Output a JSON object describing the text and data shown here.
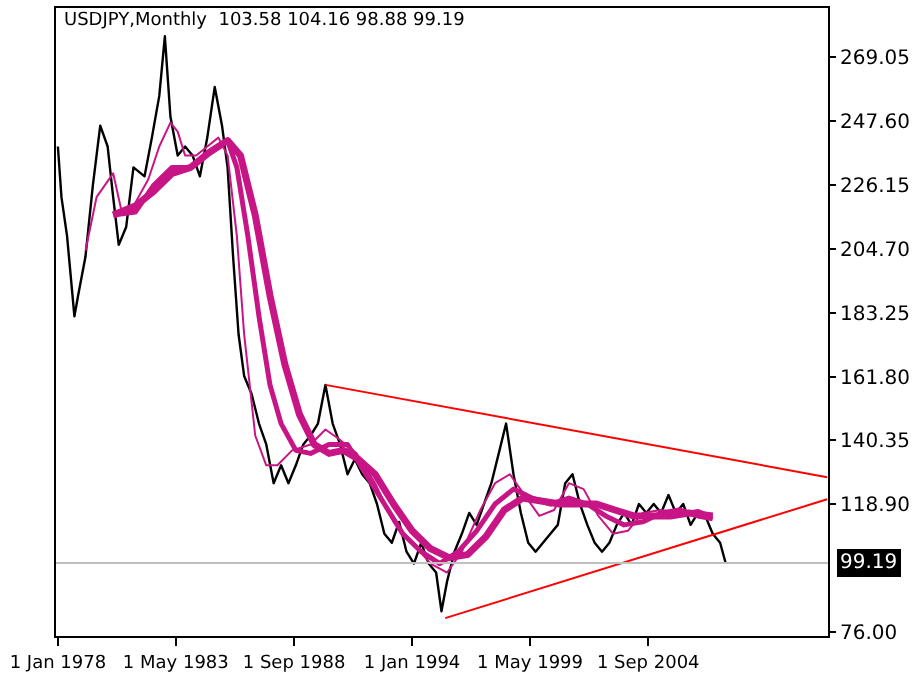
{
  "chart_data": {
    "type": "line",
    "title": "USDJPY,Monthly  103.58 104.16 98.88 99.19",
    "xlim": [
      "1977-12-01",
      "2012-10-15"
    ],
    "xticks": [
      {
        "value": "1978-01-01",
        "label": "1 Jan 1978"
      },
      {
        "value": "1983-05-01",
        "label": "1 May 1983"
      },
      {
        "value": "1988-09-01",
        "label": "1 Sep 1988"
      },
      {
        "value": "1994-01-01",
        "label": "1 Jan 1994"
      },
      {
        "value": "1999-05-01",
        "label": "1 May 1999"
      },
      {
        "value": "2004-09-01",
        "label": "1 Sep 2004"
      }
    ],
    "ylim": [
      74.7,
      285.5
    ],
    "yticks": [
      {
        "value": 76,
        "label": "76.00"
      },
      {
        "value": 118.9,
        "label": "118.90"
      },
      {
        "value": 140.35,
        "label": "140.35"
      },
      {
        "value": 161.8,
        "label": "161.80"
      },
      {
        "value": 183.25,
        "label": "183.25"
      },
      {
        "value": 204.7,
        "label": "204.70"
      },
      {
        "value": 226.15,
        "label": "226.15"
      },
      {
        "value": 247.6,
        "label": "247.60"
      },
      {
        "value": 269.05,
        "label": "269.05"
      }
    ],
    "grid": false,
    "marker": "none",
    "line_style": "solid",
    "ref_lines": [
      {
        "axis": "y",
        "value": 99.19,
        "label": "99.19",
        "color": "#c0c0c0"
      }
    ],
    "series": [
      {
        "color": "#000000",
        "x": [
          "1978-01",
          "1978-03",
          "1978-06",
          "1978-10",
          "1978-12",
          "1979-04",
          "1979-08",
          "1979-12",
          "1980-04",
          "1980-07",
          "1980-10",
          "1981-02",
          "1981-06",
          "1981-12",
          "1982-04",
          "1982-08",
          "1982-11",
          "1983-02",
          "1983-06",
          "1983-10",
          "1984-02",
          "1984-06",
          "1984-10",
          "1985-02",
          "1985-06",
          "1985-09",
          "1985-12",
          "1986-03",
          "1986-06",
          "1986-10",
          "1987-02",
          "1987-06",
          "1987-10",
          "1988-02",
          "1988-06",
          "1988-10",
          "1989-02",
          "1989-06",
          "1989-10",
          "1990-02",
          "1990-06",
          "1990-10",
          "1991-02",
          "1991-06",
          "1991-10",
          "1992-02",
          "1992-06",
          "1992-10",
          "1993-02",
          "1993-06",
          "1993-10",
          "1994-02",
          "1994-06",
          "1994-10",
          "1995-02",
          "1995-05",
          "1995-08",
          "1995-12",
          "1996-04",
          "1996-08",
          "1996-12",
          "1997-04",
          "1997-08",
          "1997-12",
          "1998-04",
          "1998-08",
          "1998-12",
          "1999-04",
          "1999-08",
          "1999-12",
          "2000-04",
          "2000-08",
          "2000-12",
          "2001-04",
          "2001-08",
          "2001-12",
          "2002-04",
          "2002-08",
          "2002-12",
          "2003-04",
          "2003-08",
          "2003-12",
          "2004-04",
          "2004-08",
          "2004-12",
          "2005-04",
          "2005-08",
          "2005-12",
          "2006-04",
          "2006-08",
          "2006-12",
          "2007-04",
          "2007-08",
          "2007-12",
          "2008-03"
        ],
        "values": [
          239,
          222,
          209,
          182,
          189,
          202,
          226,
          246,
          239,
          222,
          206,
          212,
          232,
          229,
          242,
          256,
          276,
          249,
          236,
          239,
          236,
          229,
          242,
          259,
          246,
          232,
          202,
          176,
          162,
          156,
          146,
          139,
          126,
          132,
          126,
          132,
          139,
          142,
          146,
          159,
          146,
          139,
          129,
          134,
          129,
          126,
          119,
          109,
          106,
          113,
          103,
          99,
          106,
          99,
          96,
          83,
          93,
          103,
          109,
          116,
          112,
          119,
          126,
          136,
          146,
          129,
          116,
          106,
          103,
          106,
          109,
          112,
          126,
          129,
          119,
          112,
          106,
          103,
          106,
          112,
          116,
          112,
          119,
          116,
          119,
          116,
          122,
          116,
          119,
          112,
          116,
          115,
          109,
          106,
          99.2
        ]
      },
      {
        "color": "#c71585",
        "x": [
          "1979-04",
          "1979-10",
          "1980-07",
          "1980-12",
          "1981-06",
          "1982-02",
          "1982-08",
          "1983-02",
          "1983-06",
          "1983-10",
          "1984-04",
          "1984-10",
          "1985-04",
          "1985-09",
          "1986-02",
          "1986-06",
          "1986-12",
          "1987-06",
          "1987-12",
          "1988-08",
          "1989-06",
          "1990-02",
          "1990-09",
          "1991-07",
          "1992-05",
          "1993-03",
          "1994-01",
          "1994-11",
          "1995-08",
          "1996-04",
          "1997-02",
          "1997-10",
          "1998-06",
          "1999-02",
          "1999-10",
          "2000-06",
          "2001-02",
          "2001-10",
          "2002-06",
          "2003-02",
          "2003-10",
          "2004-06",
          "2005-04",
          "2006-02",
          "2006-12",
          "2007-08"
        ],
        "values": [
          204,
          222,
          230,
          216,
          219,
          228,
          239,
          247,
          244,
          236,
          236,
          239,
          242,
          236,
          209,
          176,
          142,
          132,
          132,
          137,
          139,
          144,
          141,
          136,
          126,
          113,
          106,
          99,
          96,
          103,
          117,
          126,
          129,
          122,
          115,
          117,
          126,
          124,
          115,
          109,
          110,
          116,
          117,
          116,
          117,
          115
        ]
      },
      {
        "color": "#c71585",
        "x": [
          "1980-07",
          "1981-07",
          "1982-05",
          "1983-03",
          "1984-01",
          "1984-11",
          "1985-09",
          "1986-02",
          "1986-08",
          "1987-02",
          "1987-08",
          "1988-02",
          "1988-10",
          "1989-06",
          "1990-04",
          "1991-02",
          "1991-12",
          "1992-10",
          "1993-08",
          "1994-06",
          "1995-04",
          "1996-02",
          "1996-12",
          "1997-10",
          "1998-08",
          "1999-06",
          "2000-04",
          "2001-02",
          "2001-12",
          "2002-10",
          "2003-08",
          "2004-06",
          "2005-04",
          "2006-02",
          "2006-12",
          "2007-08"
        ],
        "values": [
          216,
          217,
          226,
          232,
          232,
          237,
          241,
          232,
          209,
          182,
          159,
          146,
          137,
          136,
          139,
          139,
          129,
          119,
          109,
          103,
          99,
          103,
          110,
          119,
          124,
          121,
          119,
          121,
          119,
          115,
          112,
          113,
          116,
          117,
          115,
          114
        ]
      },
      {
        "color": "#c71585",
        "x": [
          "1980-07",
          "1981-07",
          "1982-05",
          "1983-03",
          "1984-01",
          "1984-11",
          "1985-09",
          "1986-04",
          "1986-12",
          "1987-08",
          "1988-04",
          "1988-12",
          "1989-08",
          "1990-04",
          "1990-12",
          "1991-08",
          "1992-05",
          "1993-03",
          "1994-01",
          "1994-11",
          "1995-09",
          "1996-07",
          "1997-05",
          "1998-03",
          "1999-01",
          "1999-11",
          "2000-09",
          "2001-07",
          "2002-05",
          "2003-03",
          "2004-01",
          "2004-11",
          "2005-09",
          "2006-07",
          "2007-08"
        ],
        "values": [
          216,
          219,
          224,
          230,
          232,
          237,
          241,
          236,
          216,
          189,
          166,
          149,
          139,
          136,
          137,
          134,
          129,
          119,
          110,
          104,
          101,
          102,
          108,
          117,
          121,
          120,
          119,
          119,
          119,
          117,
          115,
          115,
          115,
          116,
          115
        ]
      },
      {
        "color": "#ff0000",
        "x": [
          "1990-02",
          "2012-10"
        ],
        "values": [
          159,
          128
        ]
      },
      {
        "color": "#ff0000",
        "x": [
          "1995-07",
          "2012-10"
        ],
        "values": [
          80.7,
          120.6
        ]
      }
    ]
  }
}
